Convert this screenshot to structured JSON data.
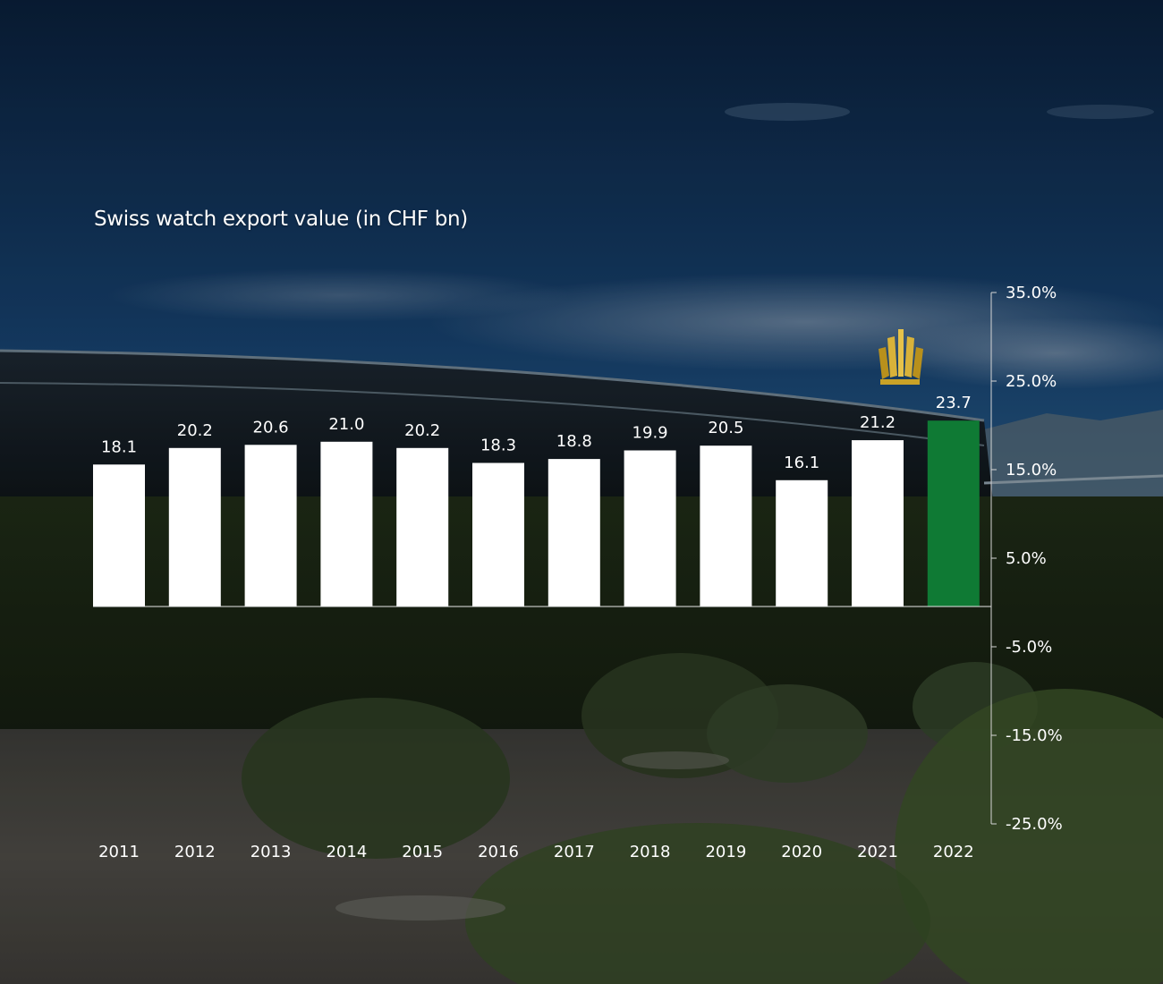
{
  "title": "Swiss watch export value (in CHF bn)",
  "colors": {
    "bar_default": "#ffffff",
    "bar_highlight": "#0f7a34",
    "text": "#ffffff",
    "axis": "#d6d6d6",
    "sky_top": "#0c2442",
    "sky_mid": "#1f5484"
  },
  "chart_data": {
    "type": "bar",
    "title": "Swiss watch export value (in CHF bn)",
    "categories": [
      "2011",
      "2012",
      "2013",
      "2014",
      "2015",
      "2016",
      "2017",
      "2018",
      "2019",
      "2020",
      "2021",
      "2022"
    ],
    "values": [
      18.1,
      20.2,
      20.6,
      21.0,
      20.2,
      18.3,
      18.8,
      19.9,
      20.5,
      16.1,
      21.2,
      23.7
    ],
    "value_labels": [
      "18.1",
      "20.2",
      "20.6",
      "21.0",
      "20.2",
      "18.3",
      "18.8",
      "19.9",
      "20.5",
      "16.1",
      "21.2",
      "23.7"
    ],
    "highlight_index": 11,
    "ylim": [
      0,
      40
    ],
    "right_axis": {
      "ticks": [
        "35.0%",
        "25.0%",
        "15.0%",
        "5.0%",
        "-5.0%",
        "-15.0%",
        "-25.0%"
      ],
      "range": [
        -25,
        35
      ]
    },
    "grid": false,
    "legend": "none"
  }
}
